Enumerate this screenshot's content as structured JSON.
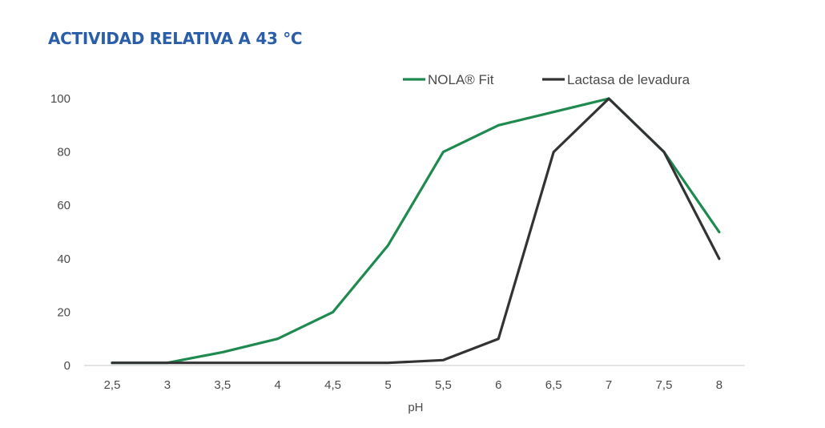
{
  "chart_data": {
    "type": "line",
    "title": "ACTIVIDAD RELATIVA A 43 °C",
    "xlabel": "pH",
    "ylabel": "",
    "x": [
      "2,5",
      "3",
      "3,5",
      "4",
      "4,5",
      "5",
      "5,5",
      "6",
      "6,5",
      "7",
      "7,5",
      "8"
    ],
    "ylim": [
      0,
      100
    ],
    "yticks": [
      "0",
      "20",
      "40",
      "60",
      "80",
      "100"
    ],
    "grid": "none",
    "legend_position": "top-right",
    "series": [
      {
        "name": "NOLA® Fit",
        "color": "#1e8a4f",
        "values": [
          1,
          1,
          5,
          10,
          20,
          45,
          80,
          90,
          95,
          100,
          80,
          50
        ]
      },
      {
        "name": "Lactasa de levadura",
        "color": "#333333",
        "values": [
          1,
          1,
          1,
          1,
          1,
          1,
          2,
          10,
          80,
          100,
          80,
          40
        ]
      }
    ]
  }
}
